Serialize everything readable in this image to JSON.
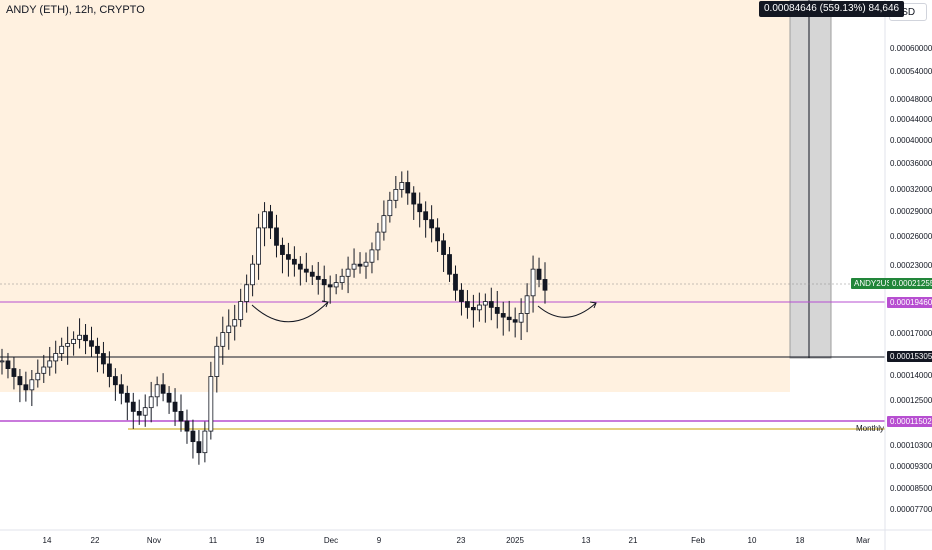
{
  "header": {
    "title": "ANDY (ETH), 12h, CRYPTO",
    "currency_button": "USD"
  },
  "measure_tooltip": "0.00084646 (559.13%) 84,646",
  "colors": {
    "bullish": "#131722",
    "bearish": "#131722",
    "zone_fill": "#fff1e0",
    "support_line_purple": "#b74fd1",
    "support_line_black": "#131722",
    "monthly_line": "#c8a000",
    "current_price_badge": "#22863a",
    "measure_box": "#d6d6d6"
  },
  "price_labels": {
    "current_symbol": "ANDY2USD",
    "current_price": "0.00021255",
    "level_upper": "0.00019460",
    "level_black": "0.00015305",
    "level_lower": "0.00011502",
    "monthly_label": "Monthly"
  },
  "chart_data": {
    "type": "candlestick",
    "title": "ANDY (ETH), 12h, CRYPTO",
    "y_axis": {
      "scale": "log",
      "ticks": [
        "0.00060000",
        "0.00054000",
        "0.00048000",
        "0.00044000",
        "0.00040000",
        "0.00036000",
        "0.00032000",
        "0.00029000",
        "0.00026000",
        "0.00023000",
        "0.00019460",
        "0.00017000",
        "0.00014000",
        "0.00012500",
        "0.00010300",
        "0.00009300",
        "0.00008500",
        "0.00007700"
      ]
    },
    "x_axis": {
      "ticks": [
        "14",
        "22",
        "Nov",
        "11",
        "19",
        "Dec",
        "9",
        "23",
        "2025",
        "13",
        "21",
        "Feb",
        "10",
        "18",
        "Mar"
      ]
    },
    "horizontal_levels": [
      0.0001946,
      0.00015305,
      0.00011502,
      0.000109
    ],
    "demand_zone": {
      "top": 0.00155,
      "bottom": 0.00013
    },
    "close_path": [
      0.00015,
      0.000145,
      0.00014,
      0.000135,
      0.000132,
      0.000138,
      0.000142,
      0.000146,
      0.00015,
      0.000155,
      0.00016,
      0.000162,
      0.000165,
      0.000168,
      0.000164,
      0.00016,
      0.000155,
      0.000148,
      0.00014,
      0.000135,
      0.00013,
      0.000125,
      0.00012,
      0.000118,
      0.000122,
      0.000128,
      0.000135,
      0.00013,
      0.000125,
      0.00012,
      0.000115,
      0.00011,
      0.000105,
      0.0001,
      0.00011,
      0.00014,
      0.00016,
      0.00017,
      0.000175,
      0.00018,
      0.000195,
      0.00021,
      0.00023,
      0.00027,
      0.00029,
      0.00027,
      0.00025,
      0.00024,
      0.000235,
      0.00023,
      0.000225,
      0.000222,
      0.000218,
      0.000215,
      0.00021,
      0.000208,
      0.000212,
      0.000218,
      0.000225,
      0.00023,
      0.000228,
      0.000232,
      0.000245,
      0.000265,
      0.000285,
      0.000305,
      0.00032,
      0.00033,
      0.000315,
      0.0003,
      0.00029,
      0.00028,
      0.00027,
      0.000255,
      0.00024,
      0.00022,
      0.000205,
      0.000195,
      0.00019,
      0.000188,
      0.000192,
      0.000195,
      0.00019,
      0.000185,
      0.000182,
      0.00018,
      0.000178,
      0.000185,
      0.0002,
      0.000225,
      0.000215,
      0.000205
    ]
  }
}
